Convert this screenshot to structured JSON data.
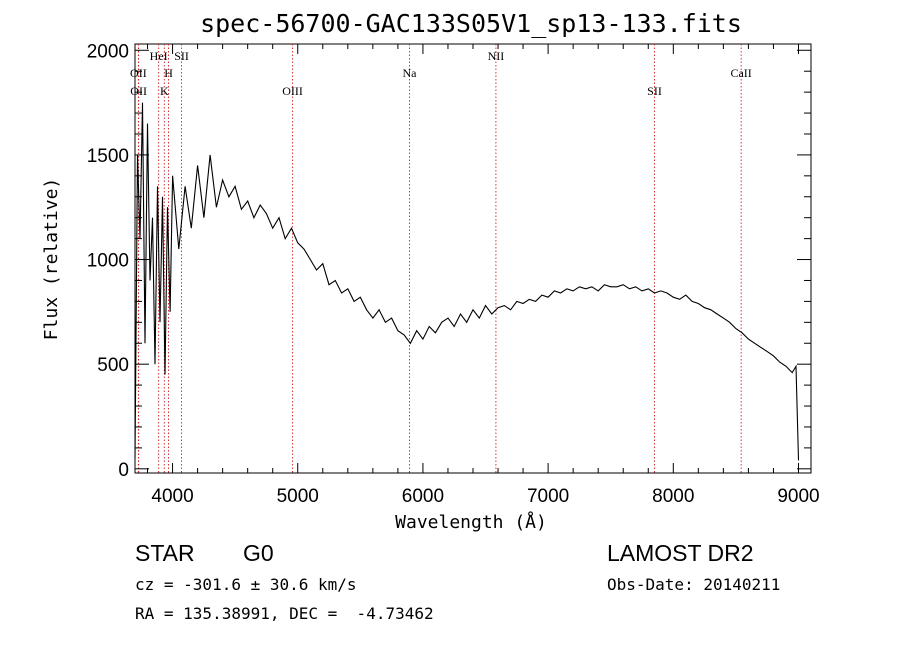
{
  "chart_data": {
    "type": "line",
    "title": "spec-56700-GAC133S05V1_sp13-133.fits",
    "xlabel": "Wavelength (Å)",
    "ylabel": "Flux (relative)",
    "xlim": [
      3700,
      9100
    ],
    "ylim": [
      -20,
      2030
    ],
    "x_ticks": [
      4000,
      5000,
      6000,
      7000,
      8000,
      9000
    ],
    "y_ticks": [
      0,
      500,
      1000,
      1500,
      2000
    ],
    "line_color": "#000000",
    "marker_color": "#cc2222",
    "spectral_lines": [
      {
        "label": "OII",
        "x": 3727,
        "row": 1
      },
      {
        "label": "OII",
        "x": 3729,
        "row": 2
      },
      {
        "label": "HeI",
        "x": 3889,
        "row": 0
      },
      {
        "label": "H",
        "x": 3968,
        "row": 1
      },
      {
        "label": "K",
        "x": 3934,
        "row": 2
      },
      {
        "label": "SII",
        "x": 4072,
        "row": 0
      },
      {
        "label": "OIII",
        "x": 4959,
        "row": 2
      },
      {
        "label": "Na",
        "x": 5893,
        "row": 1
      },
      {
        "label": "NII",
        "x": 6583,
        "row": 0
      },
      {
        "label": "SII",
        "x": 7850,
        "row": 2
      },
      {
        "label": "CaII",
        "x": 8542,
        "row": 1
      }
    ],
    "spectrum": {
      "x": [
        3700,
        3720,
        3740,
        3760,
        3780,
        3800,
        3820,
        3840,
        3860,
        3880,
        3900,
        3920,
        3940,
        3960,
        3980,
        4000,
        4050,
        4100,
        4150,
        4200,
        4250,
        4300,
        4350,
        4400,
        4450,
        4500,
        4550,
        4600,
        4650,
        4700,
        4750,
        4800,
        4850,
        4900,
        4950,
        5000,
        5050,
        5100,
        5150,
        5200,
        5250,
        5300,
        5350,
        5400,
        5450,
        5500,
        5550,
        5600,
        5650,
        5700,
        5750,
        5800,
        5850,
        5900,
        5950,
        6000,
        6050,
        6100,
        6150,
        6200,
        6250,
        6300,
        6350,
        6400,
        6450,
        6500,
        6550,
        6600,
        6650,
        6700,
        6750,
        6800,
        6850,
        6900,
        6950,
        7000,
        7050,
        7100,
        7150,
        7200,
        7250,
        7300,
        7350,
        7400,
        7450,
        7500,
        7550,
        7600,
        7650,
        7700,
        7750,
        7800,
        7850,
        7900,
        7950,
        8000,
        8050,
        8100,
        8150,
        8200,
        8250,
        8300,
        8350,
        8400,
        8450,
        8500,
        8550,
        8600,
        8650,
        8700,
        8750,
        8800,
        8850,
        8900,
        8950,
        8980,
        9000
      ],
      "y": [
        50,
        1500,
        1100,
        1750,
        600,
        1650,
        900,
        1200,
        500,
        1350,
        700,
        1300,
        450,
        1250,
        750,
        1400,
        1050,
        1350,
        1150,
        1450,
        1200,
        1500,
        1250,
        1380,
        1300,
        1350,
        1240,
        1280,
        1200,
        1260,
        1220,
        1150,
        1200,
        1100,
        1150,
        1080,
        1050,
        1000,
        950,
        980,
        880,
        900,
        840,
        860,
        800,
        820,
        760,
        720,
        760,
        700,
        720,
        660,
        640,
        600,
        660,
        620,
        680,
        650,
        700,
        720,
        680,
        740,
        700,
        760,
        720,
        780,
        740,
        770,
        780,
        760,
        800,
        790,
        810,
        800,
        830,
        820,
        850,
        840,
        860,
        850,
        870,
        860,
        870,
        850,
        880,
        870,
        870,
        880,
        860,
        870,
        850,
        860,
        840,
        850,
        840,
        820,
        810,
        830,
        800,
        790,
        770,
        760,
        740,
        720,
        700,
        670,
        650,
        620,
        600,
        580,
        560,
        540,
        510,
        490,
        460,
        490,
        40
      ]
    }
  },
  "info": {
    "object_class": "STAR",
    "subclass": "G0",
    "survey": "LAMOST DR2",
    "cz": "cz = -301.6 ± 30.6 km/s",
    "obs_date": "Obs-Date: 20140211",
    "coords": "RA = 135.38991, DEC =  -4.73462"
  }
}
